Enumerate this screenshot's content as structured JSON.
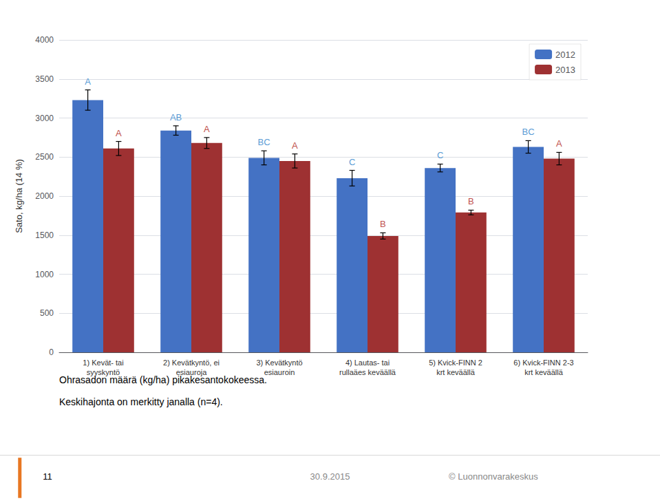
{
  "chart_data": {
    "type": "bar",
    "categories": [
      "1) Kevät- tai\nsyyskyntö",
      "2) Kevätkyntö, ei\nesiauroja",
      "3) Kevätkyntö\nesiauroin",
      "4) Lautas- tai\nrullaäes keväällä",
      "5) Kvick-FINN 2\nkrt keväällä",
      "6) Kvick-FINN 2-3\nkrt keväällä"
    ],
    "series": [
      {
        "name": "2012",
        "color": "#4472C4",
        "values": [
          3230,
          2840,
          2490,
          2230,
          2360,
          2630
        ],
        "errors": [
          130,
          60,
          90,
          100,
          50,
          80
        ],
        "annotations": [
          "A",
          "AB",
          "BC",
          "C",
          "C",
          "BC"
        ],
        "label_color": "#5A9BD5"
      },
      {
        "name": "2013",
        "color": "#9E3132",
        "values": [
          2610,
          2680,
          2450,
          1490,
          1790,
          2480
        ],
        "errors": [
          90,
          70,
          90,
          40,
          30,
          80
        ],
        "annotations": [
          "A",
          "A",
          "A",
          "B",
          "B",
          "A"
        ],
        "label_color": "#C0504D"
      }
    ],
    "ylabel": "Sato, kg/ha (14 %)",
    "ylim": [
      0,
      4000
    ],
    "yticks": [
      0,
      500,
      1000,
      1500,
      2000,
      2500,
      3000,
      3500,
      4000
    ],
    "grid": true,
    "legend": "upper right",
    "footnotes": [
      "Ohrasadon määrä (kg/ha) pikakesantokokeessa.",
      "Keskihajonta on merkitty janalla (n=4)."
    ],
    "footer": [
      "11",
      "30.9.2015",
      "© Luonnonvarakeskus"
    ]
  }
}
